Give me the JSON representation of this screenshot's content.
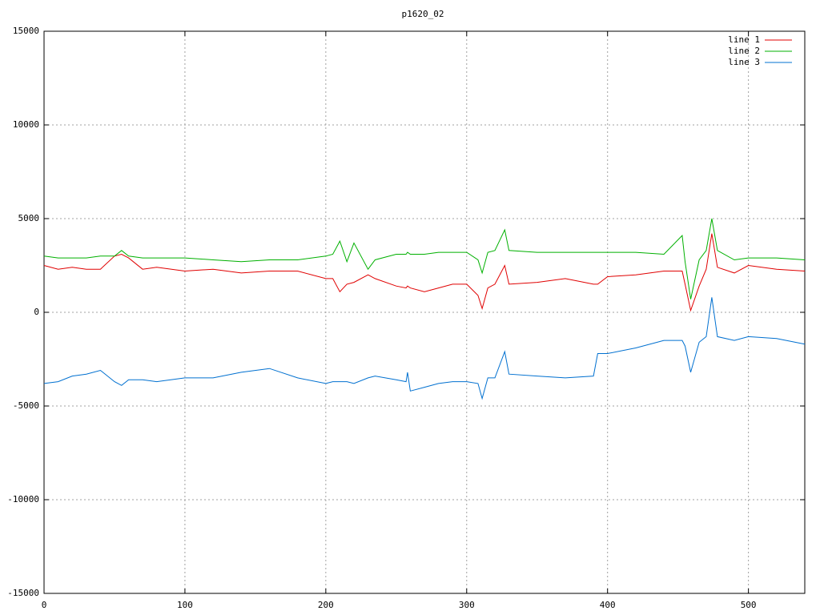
{
  "chart_data": {
    "type": "line",
    "title": "p1620_02",
    "x": [
      0,
      10,
      20,
      30,
      40,
      50,
      55,
      60,
      70,
      80,
      100,
      120,
      140,
      160,
      180,
      200,
      205,
      210,
      215,
      220,
      230,
      235,
      250,
      257,
      258,
      260,
      270,
      280,
      290,
      300,
      308,
      311,
      315,
      320,
      327,
      330,
      350,
      370,
      390,
      393,
      400,
      420,
      440,
      453,
      455,
      459,
      465,
      470,
      474,
      478,
      490,
      500,
      520,
      540
    ],
    "series": [
      {
        "name": "line 1",
        "color": "#e00000",
        "values": [
          2500,
          2300,
          2400,
          2300,
          2300,
          3000,
          3100,
          2900,
          2300,
          2400,
          2200,
          2300,
          2100,
          2200,
          2200,
          1800,
          1800,
          1100,
          1500,
          1600,
          2000,
          1800,
          1400,
          1300,
          1400,
          1300,
          1100,
          1300,
          1500,
          1500,
          900,
          200,
          1300,
          1500,
          2500,
          1500,
          1600,
          1800,
          1500,
          1500,
          1900,
          2000,
          2200,
          2200,
          1500,
          100,
          1400,
          2300,
          4200,
          2400,
          2100,
          2500,
          2300,
          2200
        ]
      },
      {
        "name": "line 2",
        "color": "#00b000",
        "values": [
          3000,
          2900,
          2900,
          2900,
          3000,
          3000,
          3300,
          3000,
          2900,
          2900,
          2900,
          2800,
          2700,
          2800,
          2800,
          3000,
          3100,
          3800,
          2700,
          3700,
          2300,
          2800,
          3100,
          3100,
          3200,
          3100,
          3100,
          3200,
          3200,
          3200,
          2800,
          2100,
          3200,
          3300,
          4400,
          3300,
          3200,
          3200,
          3200,
          3200,
          3200,
          3200,
          3100,
          4100,
          2700,
          700,
          2800,
          3300,
          5000,
          3300,
          2800,
          2900,
          2900,
          2800
        ]
      },
      {
        "name": "line 3",
        "color": "#0070d0",
        "values": [
          -3800,
          -3700,
          -3400,
          -3300,
          -3100,
          -3700,
          -3900,
          -3600,
          -3600,
          -3700,
          -3500,
          -3500,
          -3200,
          -3000,
          -3500,
          -3800,
          -3700,
          -3700,
          -3700,
          -3800,
          -3500,
          -3400,
          -3600,
          -3700,
          -3200,
          -4200,
          -4000,
          -3800,
          -3700,
          -3700,
          -3800,
          -4600,
          -3500,
          -3500,
          -2100,
          -3300,
          -3400,
          -3500,
          -3400,
          -2200,
          -2200,
          -1900,
          -1500,
          -1500,
          -1800,
          -3200,
          -1600,
          -1300,
          800,
          -1300,
          -1500,
          -1300,
          -1400,
          -1700
        ]
      }
    ],
    "xlim": [
      0,
      540
    ],
    "xticks": [
      0,
      100,
      200,
      300,
      400,
      500
    ],
    "ylim": [
      -15000,
      15000
    ],
    "yticks": [
      -15000,
      -10000,
      -5000,
      0,
      5000,
      10000,
      15000
    ],
    "grid": true,
    "legend": "top-right"
  }
}
